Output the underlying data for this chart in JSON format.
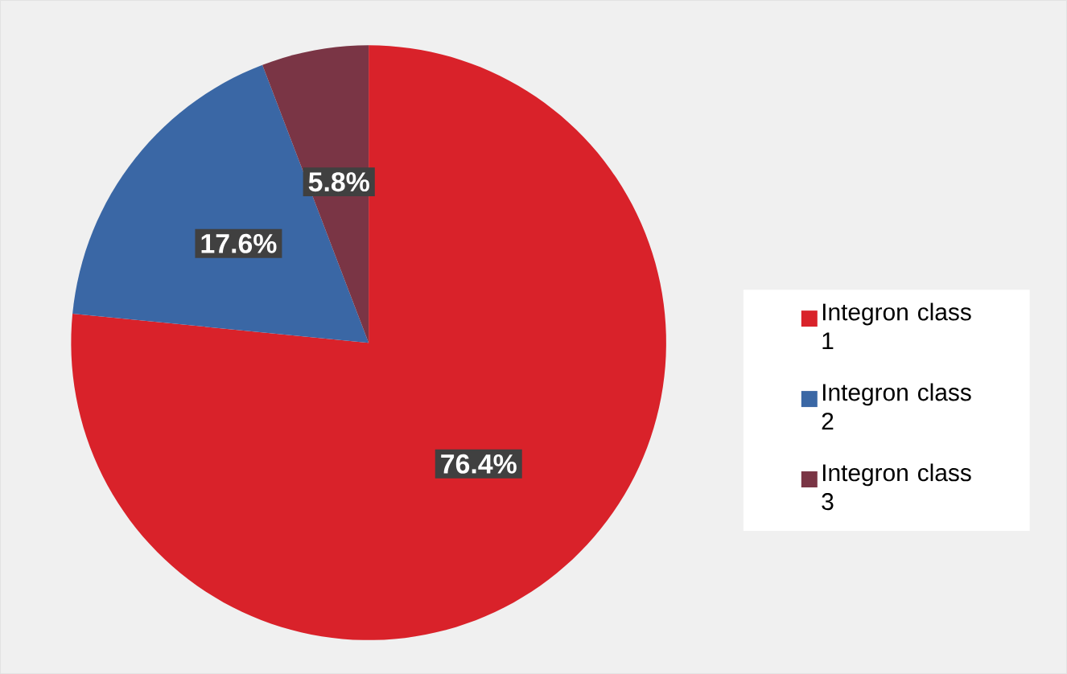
{
  "chart_data": {
    "type": "pie",
    "categories": [
      "Integron class 1",
      "Integron class 2",
      "Integron class 3"
    ],
    "values": [
      76.4,
      17.6,
      5.8
    ],
    "value_labels": [
      "76.4%",
      "17.6%",
      "5.8%"
    ],
    "colors": [
      "#d9222a",
      "#3a67a5",
      "#7a3545"
    ],
    "legend": "right"
  }
}
